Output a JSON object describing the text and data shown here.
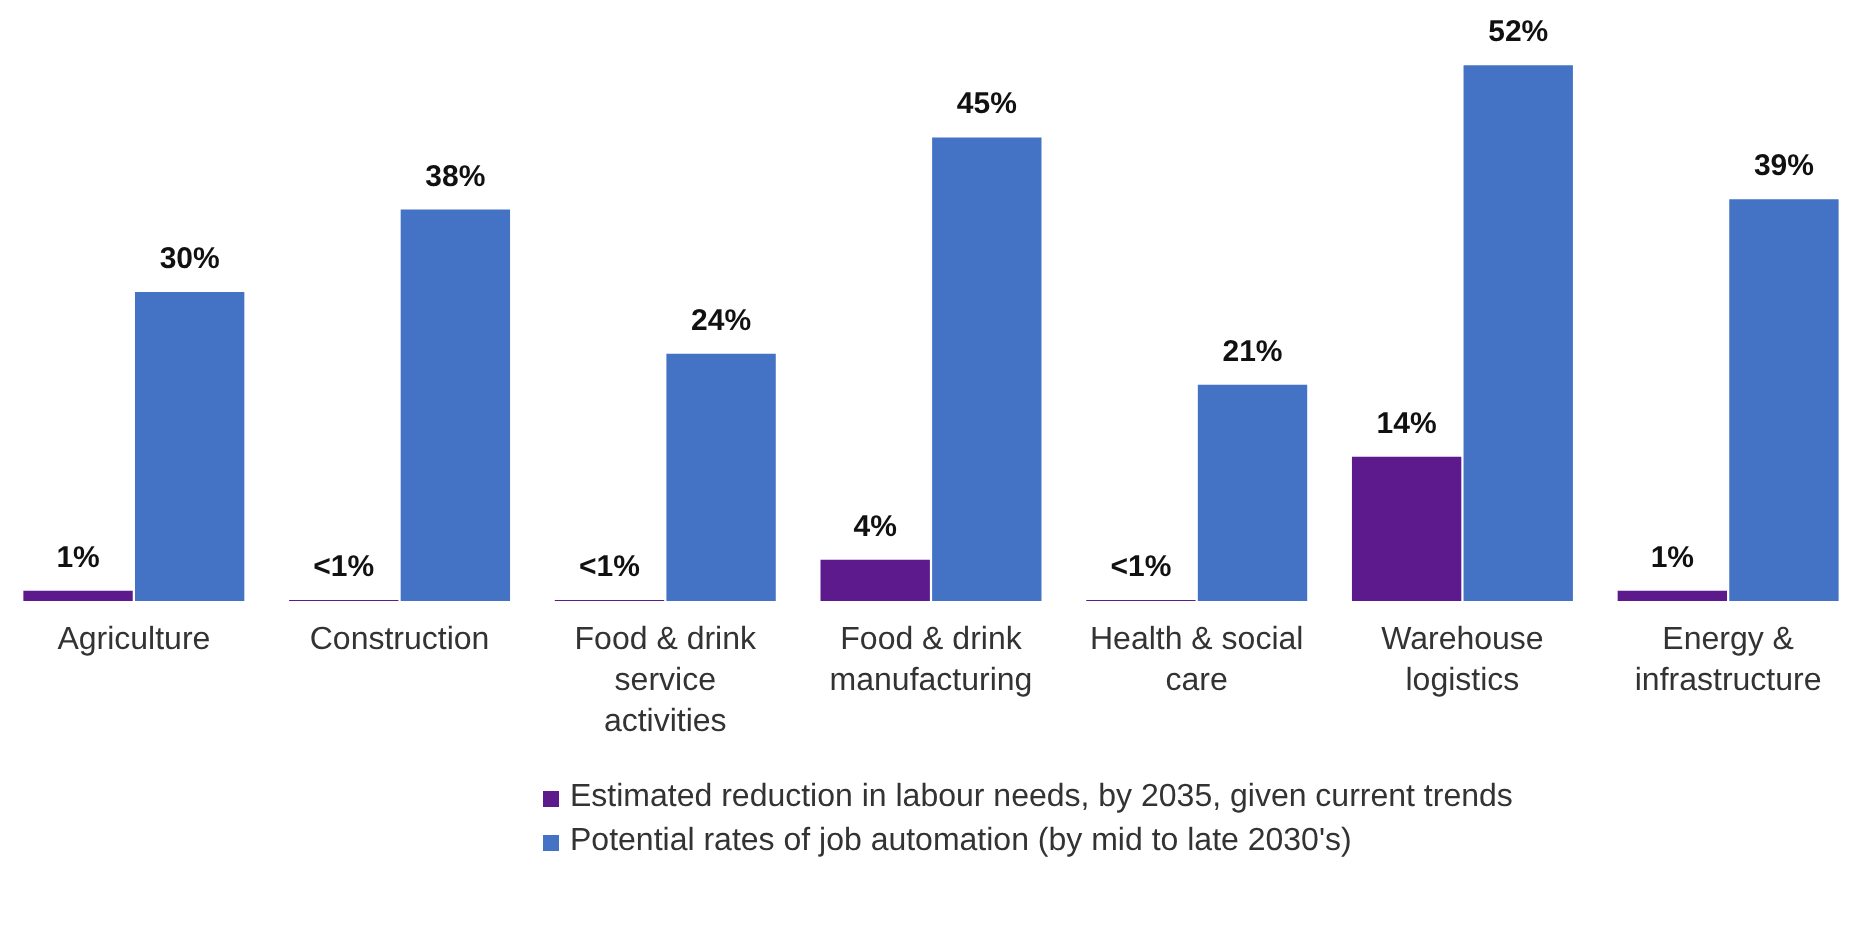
{
  "chart_data": {
    "type": "bar",
    "categories": [
      "Agriculture",
      "Construction",
      "Food & drink service activities",
      "Food & drink manufacturing",
      "Health & social care",
      "Warehouse logistics",
      "Energy & infrastructure"
    ],
    "series": [
      {
        "name": "Estimated reduction in labour needs, by 2035, given current trends",
        "color": "#5c1a8c",
        "values": [
          1,
          0.1,
          0.1,
          4,
          0.1,
          14,
          1
        ],
        "value_labels": [
          "1%",
          "<1%",
          "<1%",
          "4%",
          "<1%",
          "14%",
          "1%"
        ]
      },
      {
        "name": "Potential rates of job automation (by mid to late 2030's)",
        "color": "#4472c4",
        "values": [
          30,
          38,
          24,
          45,
          21,
          52,
          39
        ],
        "value_labels": [
          "30%",
          "38%",
          "24%",
          "45%",
          "21%",
          "52%",
          "39%"
        ]
      }
    ],
    "legend": "bottom"
  }
}
